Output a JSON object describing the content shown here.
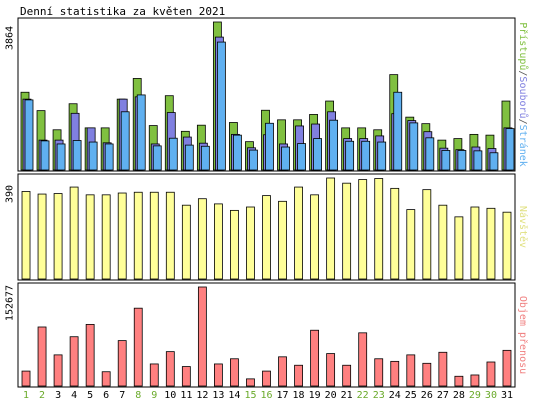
{
  "title": "Denní statistika za květen 2021",
  "chart_data": {
    "type": "bar",
    "categories": [
      "1",
      "2",
      "3",
      "4",
      "5",
      "6",
      "7",
      "8",
      "9",
      "10",
      "11",
      "12",
      "13",
      "14",
      "15",
      "16",
      "17",
      "18",
      "19",
      "20",
      "21",
      "22",
      "23",
      "24",
      "25",
      "26",
      "27",
      "28",
      "29",
      "30",
      "31"
    ],
    "weekend_days": [
      "1",
      "2",
      "8",
      "9",
      "15",
      "16",
      "22",
      "23",
      "29",
      "30"
    ],
    "panels": [
      {
        "id": "hits",
        "ylabel_max": "3864",
        "ymax": 3864,
        "legend": [
          {
            "text": "Přístupů",
            "color": "#80c040"
          },
          {
            "text": "/",
            "color": "#555555"
          },
          {
            "text": "Souborů",
            "color": "#8080e0"
          },
          {
            "text": "/",
            "color": "#555555"
          },
          {
            "text": "Stránek",
            "color": "#60b0f0"
          }
        ],
        "series": [
          {
            "name": "Přístupů",
            "color": "#80c040",
            "values": [
              2030,
              1550,
              1050,
              1730,
              1100,
              1100,
              1850,
              2390,
              1160,
              1940,
              1010,
              1170,
              3864,
              1240,
              740,
              1560,
              1310,
              1310,
              1450,
              1800,
              1100,
              1100,
              1050,
              2490,
              1380,
              1210,
              780,
              820,
              930,
              910,
              1800
            ]
          },
          {
            "name": "Souborů",
            "color": "#8080e0",
            "values": [
              1850,
              780,
              780,
              1480,
              1100,
              710,
              1850,
              1910,
              680,
              1500,
              860,
              700,
              3470,
              930,
              580,
              920,
              680,
              1150,
              1200,
              1520,
              820,
              820,
              890,
              1470,
              1290,
              1000,
              570,
              530,
              600,
              560,
              1100
            ]
          },
          {
            "name": "Stránek",
            "color": "#60b0f0",
            "values": [
              1830,
              760,
              680,
              770,
              730,
              680,
              1520,
              1960,
              630,
              830,
              650,
              620,
              3340,
              910,
              520,
              1220,
              600,
              690,
              820,
              1300,
              750,
              750,
              730,
              2030,
              1230,
              840,
              510,
              510,
              500,
              450,
              1080
            ]
          }
        ]
      },
      {
        "id": "visits",
        "ylabel_max": "390",
        "ymax": 390,
        "legend": [
          {
            "text": "Návštěv",
            "color": "#e0e080"
          }
        ],
        "series": [
          {
            "name": "Návštěv",
            "color": "#ffff99",
            "values": [
              338,
              328,
              330,
              355,
              325,
              325,
              332,
              335,
              335,
              335,
              285,
              310,
              290,
              265,
              278,
              322,
              300,
              355,
              325,
              390,
              370,
              384,
              388,
              350,
              268,
              345,
              285,
              240,
              278,
              273,
              258
            ]
          }
        ]
      },
      {
        "id": "volume",
        "ylabel_max": "152677",
        "ymax": 152677,
        "legend": [
          {
            "text": "Objem přenosu",
            "color": "#f08080"
          }
        ],
        "series": [
          {
            "name": "Objem přenosu",
            "color": "#ff8080",
            "values": [
              23000,
              91000,
              48000,
              76000,
              95000,
              22000,
              70000,
              120000,
              34000,
              53000,
              30000,
              152677,
              34000,
              42000,
              11000,
              23000,
              45000,
              32000,
              86000,
              50000,
              32000,
              82000,
              42000,
              38000,
              48000,
              35000,
              52000,
              15000,
              17000,
              37000,
              55000
            ]
          }
        ]
      }
    ]
  }
}
